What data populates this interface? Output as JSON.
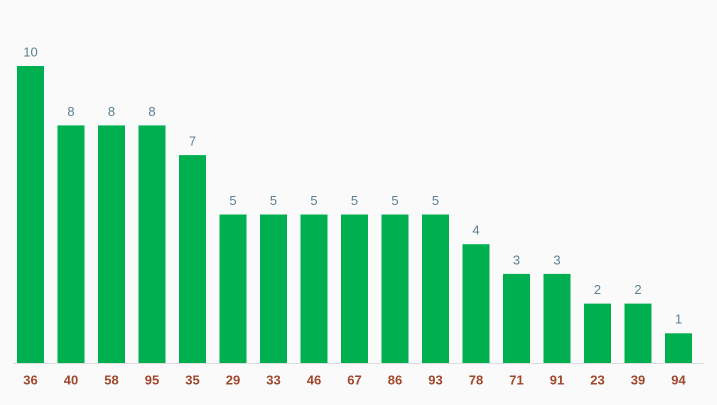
{
  "chart_data": {
    "type": "bar",
    "categories": [
      "36",
      "40",
      "58",
      "95",
      "35",
      "29",
      "33",
      "46",
      "67",
      "86",
      "93",
      "78",
      "71",
      "91",
      "23",
      "39",
      "94"
    ],
    "values": [
      10,
      8,
      8,
      8,
      7,
      5,
      5,
      5,
      5,
      5,
      5,
      4,
      3,
      3,
      2,
      2,
      1
    ],
    "color": "#00b050"
  }
}
